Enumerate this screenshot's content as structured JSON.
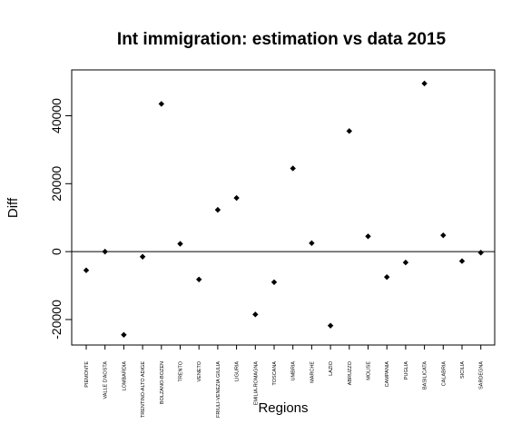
{
  "chart_data": {
    "type": "scatter",
    "title": "Int immigration: estimation vs data 2015",
    "xlabel": "Regions",
    "ylabel": "Diff",
    "categories": [
      "PIEMONTE",
      "VALLE D'AOSTA",
      "LOMBARDIA",
      "TRENTINO-ALTO ADIGE",
      "BOLZANO-BOZEN",
      "TRENTO",
      "VENETO",
      "FRIULI-VENEZIA GIULIA",
      "LIGURIA",
      "EMILIA-ROMAGNA",
      "TOSCANA",
      "UMBRIA",
      "MARCHE",
      "LAZIO",
      "ABRUZZO",
      "MOLISE",
      "CAMPANIA",
      "PUGLIA",
      "BASILICATA",
      "CALABRIA",
      "SICILIA",
      "SARDEGNA"
    ],
    "values": [
      -5500,
      0,
      -24500,
      -1500,
      43500,
      2300,
      -8200,
      12300,
      15800,
      -18500,
      -9000,
      24500,
      2500,
      -21800,
      35500,
      4500,
      -7500,
      -3200,
      49500,
      4800,
      -2800,
      -300
    ],
    "ylim": [
      -27500,
      53500
    ],
    "yticks": [
      -20000,
      0,
      20000,
      40000
    ],
    "ytick_labels": [
      "-20000",
      "0",
      "20000",
      "40000"
    ],
    "reference_line": 0,
    "marker": "diamond",
    "marker_color": "#000000",
    "grid": false,
    "legend": "none"
  }
}
